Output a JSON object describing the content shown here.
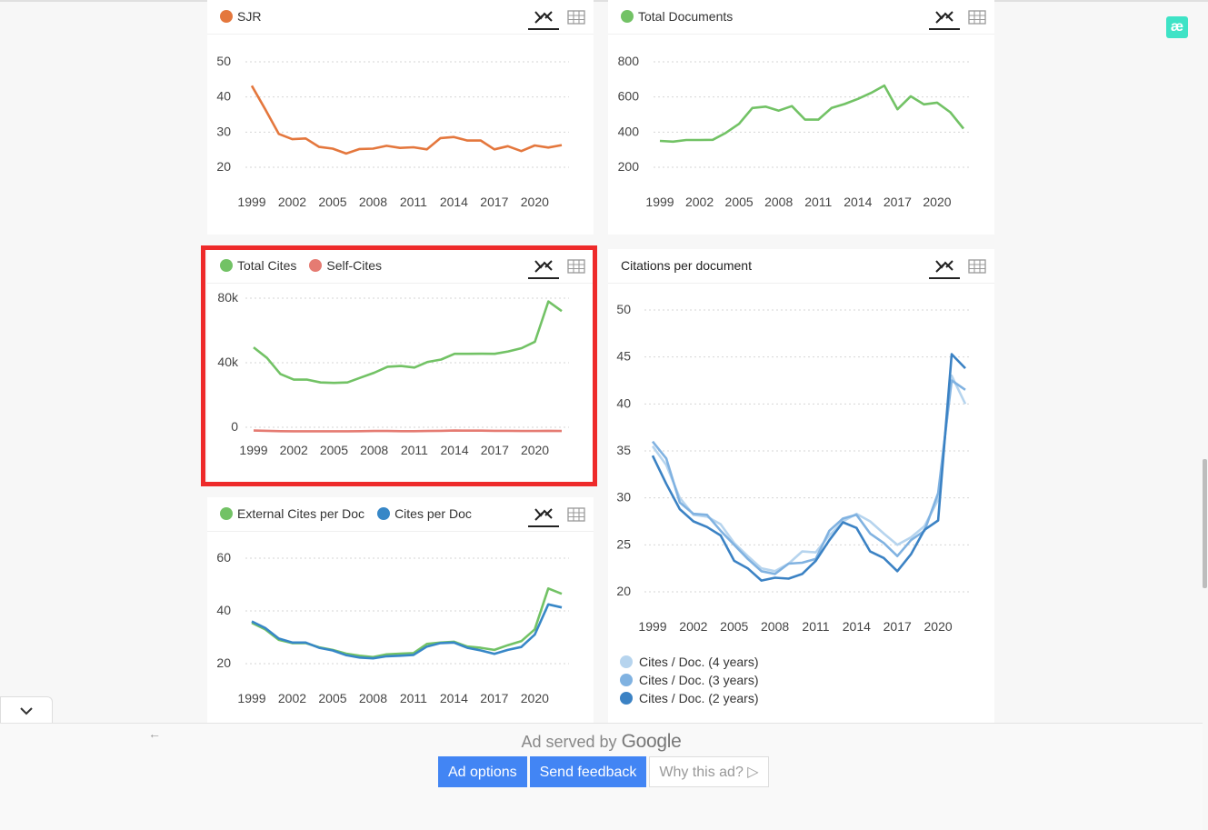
{
  "chart_data": [
    {
      "id": "sjr",
      "type": "line",
      "x": [
        1999,
        2000,
        2001,
        2002,
        2003,
        2004,
        2005,
        2006,
        2007,
        2008,
        2009,
        2010,
        2011,
        2012,
        2013,
        2014,
        2015,
        2016,
        2017,
        2018,
        2019,
        2020,
        2021,
        2022
      ],
      "series": [
        {
          "name": "SJR",
          "color": "#e4773d",
          "values": [
            43.2,
            36.5,
            29.5,
            28.0,
            28.2,
            25.8,
            25.3,
            23.9,
            25.2,
            25.3,
            26.1,
            25.5,
            25.7,
            25.1,
            28.3,
            28.6,
            27.6,
            27.6,
            25.1,
            26.0,
            24.6,
            26.2,
            25.6,
            26.3
          ]
        }
      ],
      "yticks": [
        20,
        30,
        40,
        50
      ],
      "ylim": [
        20,
        50
      ],
      "xticks": [
        1999,
        2002,
        2005,
        2008,
        2011,
        2014,
        2017,
        2020
      ]
    },
    {
      "id": "docs",
      "type": "line",
      "x": [
        1999,
        2000,
        2001,
        2002,
        2003,
        2004,
        2005,
        2006,
        2007,
        2008,
        2009,
        2010,
        2011,
        2012,
        2013,
        2014,
        2015,
        2016,
        2017,
        2018,
        2019,
        2020,
        2021,
        2022
      ],
      "series": [
        {
          "name": "Total Documents",
          "color": "#72c265",
          "values": [
            350,
            346,
            355,
            355,
            356,
            396,
            447,
            537,
            545,
            522,
            548,
            471,
            471,
            537,
            560,
            589,
            623,
            665,
            530,
            604,
            558,
            568,
            513,
            420
          ]
        }
      ],
      "yticks": [
        200,
        400,
        600,
        800
      ],
      "ylim": [
        200,
        800
      ],
      "xticks": [
        1999,
        2002,
        2005,
        2008,
        2011,
        2014,
        2017,
        2020
      ]
    },
    {
      "id": "cites",
      "type": "line",
      "x": [
        1999,
        2000,
        2001,
        2002,
        2003,
        2004,
        2005,
        2006,
        2007,
        2008,
        2009,
        2010,
        2011,
        2012,
        2013,
        2014,
        2015,
        2016,
        2017,
        2018,
        2019,
        2020,
        2021,
        2022
      ],
      "series": [
        {
          "name": "Total Cites",
          "color": "#72c265",
          "values": [
            49500,
            43000,
            33000,
            29500,
            29500,
            27800,
            27500,
            27800,
            30800,
            33800,
            37500,
            38000,
            37000,
            40500,
            42000,
            45500,
            45500,
            45600,
            45500,
            47000,
            49000,
            53000,
            78000,
            72000
          ]
        },
        {
          "name": "Self-Cites",
          "color": "#e57b72",
          "values": [
            -2000,
            -2200,
            -2400,
            -2500,
            -2500,
            -2500,
            -2500,
            -2500,
            -2400,
            -2300,
            -2300,
            -2400,
            -2400,
            -2300,
            -2200,
            -2000,
            -2100,
            -2100,
            -2200,
            -2200,
            -2300,
            -2300,
            -2200,
            -2300
          ]
        }
      ],
      "yticks": [
        0,
        40000,
        80000
      ],
      "ytick_labels": [
        "0",
        "40k",
        "80k"
      ],
      "ylim": [
        0,
        80000
      ],
      "xticks": [
        1999,
        2002,
        2005,
        2008,
        2011,
        2014,
        2017,
        2020
      ]
    },
    {
      "id": "ext",
      "type": "line",
      "x": [
        1999,
        2000,
        2001,
        2002,
        2003,
        2004,
        2005,
        2006,
        2007,
        2008,
        2009,
        2010,
        2011,
        2012,
        2013,
        2014,
        2015,
        2016,
        2017,
        2018,
        2019,
        2020,
        2021,
        2022
      ],
      "series": [
        {
          "name": "External Cites per Doc",
          "color": "#72c265",
          "values": [
            35.5,
            33.0,
            29.0,
            27.8,
            27.8,
            26.2,
            25.2,
            23.8,
            23.0,
            22.5,
            23.5,
            23.8,
            24.0,
            27.5,
            28.0,
            28.3,
            26.5,
            26.0,
            25.2,
            27.0,
            28.5,
            33.0,
            48.5,
            46.5
          ]
        },
        {
          "name": "Cites per Doc",
          "color": "#3787c7",
          "values": [
            36.0,
            33.5,
            29.5,
            28.0,
            28.0,
            26.0,
            25.0,
            23.2,
            22.3,
            22.0,
            22.8,
            23.0,
            23.3,
            26.5,
            27.8,
            28.0,
            26.0,
            25.0,
            23.7,
            25.2,
            26.3,
            31.0,
            42.5,
            41.3
          ]
        }
      ],
      "yticks": [
        20,
        40,
        60
      ],
      "ylim": [
        20,
        60
      ],
      "xticks": [
        1999,
        2002,
        2005,
        2008,
        2011,
        2014,
        2017,
        2020
      ]
    },
    {
      "id": "cpd",
      "title": "Citations per document",
      "type": "line",
      "x": [
        1999,
        2000,
        2001,
        2002,
        2003,
        2004,
        2005,
        2006,
        2007,
        2008,
        2009,
        2010,
        2011,
        2012,
        2013,
        2014,
        2015,
        2016,
        2017,
        2018,
        2019,
        2020,
        2021,
        2022
      ],
      "series": [
        {
          "name": "Cites / Doc. (4 years)",
          "color": "#b6d4ee",
          "values": [
            35.5,
            33.5,
            30.0,
            28.2,
            28.0,
            27.2,
            25.2,
            23.8,
            22.5,
            22.2,
            23.0,
            24.3,
            24.2,
            26.0,
            27.5,
            28.3,
            27.5,
            26.2,
            25.0,
            25.8,
            27.0,
            29.8,
            43.0,
            40.0
          ]
        },
        {
          "name": "Cites / Doc. (3 years)",
          "color": "#80b2e1",
          "values": [
            36.0,
            34.2,
            29.5,
            28.3,
            28.2,
            26.5,
            25.0,
            23.5,
            22.2,
            21.9,
            23.0,
            23.1,
            23.5,
            26.5,
            27.8,
            28.2,
            26.2,
            25.2,
            23.8,
            25.5,
            26.5,
            30.5,
            42.5,
            41.5
          ]
        },
        {
          "name": "Cites / Doc. (2 years)",
          "color": "#3b82c4",
          "values": [
            34.5,
            31.5,
            28.8,
            27.5,
            26.9,
            26.0,
            23.3,
            22.5,
            21.2,
            21.5,
            21.4,
            21.9,
            23.3,
            25.5,
            27.4,
            26.8,
            24.3,
            23.6,
            22.2,
            24.0,
            26.6,
            27.6,
            45.3,
            43.8
          ]
        }
      ],
      "yticks": [
        20,
        25,
        30,
        35,
        40,
        45,
        50
      ],
      "ylim": [
        20,
        50
      ],
      "xticks": [
        1999,
        2002,
        2005,
        2008,
        2011,
        2014,
        2017,
        2020
      ]
    }
  ],
  "ad": {
    "served_text": "Ad served by",
    "brand": "Google",
    "options": "Ad options",
    "feedback": "Send feedback",
    "why": "Why this ad? ▷",
    "back_arrow": "←"
  },
  "logo_text": "æ"
}
